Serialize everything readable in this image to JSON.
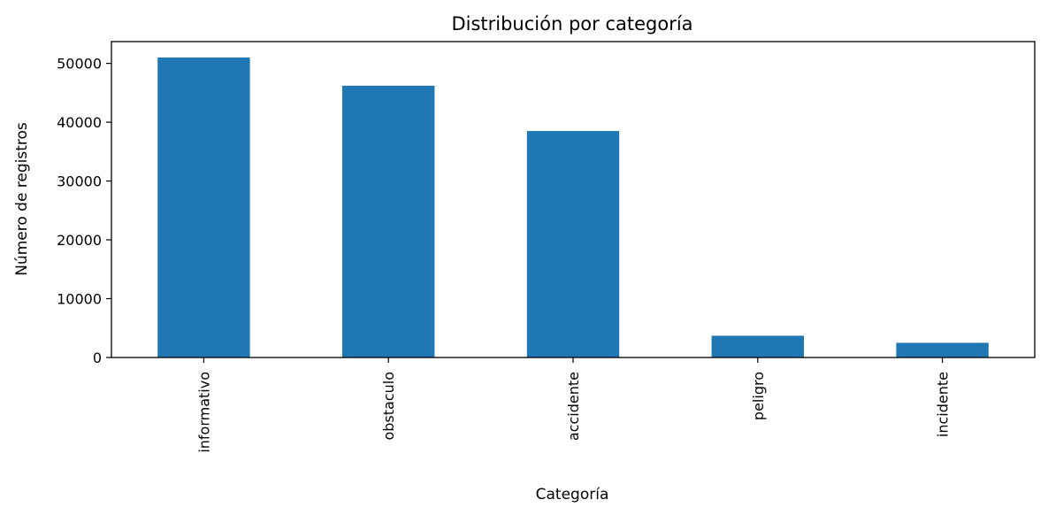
{
  "chart_data": {
    "type": "bar",
    "title": "Distribución por categoría",
    "xlabel": "Categoría",
    "ylabel": "Número de registros",
    "categories": [
      "informativo",
      "obstaculo",
      "accidente",
      "peligro",
      "incidente"
    ],
    "values": [
      51000,
      46200,
      38500,
      3700,
      2500
    ],
    "ylim": [
      0,
      53700
    ],
    "yticks": [
      0,
      10000,
      20000,
      30000,
      40000,
      50000
    ],
    "ytick_labels": [
      "0",
      "10000",
      "20000",
      "30000",
      "40000",
      "50000"
    ],
    "bar_color": "#1f77b4",
    "grid": false,
    "legend": "none",
    "xtick_rotation": "vertical"
  }
}
